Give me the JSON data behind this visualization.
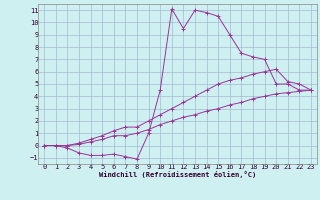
{
  "title": "",
  "xlabel": "Windchill (Refroidissement éolien,°C)",
  "bg_color": "#cff0f0",
  "grid_color": "#99aacc",
  "line_color": "#993399",
  "xlim": [
    -0.5,
    23.5
  ],
  "ylim": [
    -1.5,
    11.5
  ],
  "xticks": [
    0,
    1,
    2,
    3,
    4,
    5,
    6,
    7,
    8,
    9,
    10,
    11,
    12,
    13,
    14,
    15,
    16,
    17,
    18,
    19,
    20,
    21,
    22,
    23
  ],
  "yticks": [
    -1,
    0,
    1,
    2,
    3,
    4,
    5,
    6,
    7,
    8,
    9,
    10,
    11
  ],
  "line1_x": [
    0,
    1,
    2,
    3,
    4,
    5,
    6,
    7,
    8,
    9,
    10,
    11,
    12,
    13,
    14,
    15,
    16,
    17,
    18,
    19,
    20,
    21,
    22,
    23
  ],
  "line1_y": [
    0.0,
    0.0,
    -0.2,
    -0.6,
    -0.8,
    -0.8,
    -0.7,
    -0.9,
    -1.1,
    1.0,
    4.5,
    11.1,
    9.5,
    11.0,
    10.8,
    10.5,
    9.0,
    7.5,
    7.2,
    7.0,
    5.0,
    5.0,
    4.5,
    4.5
  ],
  "line2_x": [
    0,
    1,
    2,
    3,
    4,
    5,
    6,
    7,
    8,
    9,
    10,
    11,
    12,
    13,
    14,
    15,
    16,
    17,
    18,
    19,
    20,
    21,
    22,
    23
  ],
  "line2_y": [
    0.0,
    0.0,
    0.0,
    0.2,
    0.5,
    0.8,
    1.2,
    1.5,
    1.5,
    2.0,
    2.5,
    3.0,
    3.5,
    4.0,
    4.5,
    5.0,
    5.3,
    5.5,
    5.8,
    6.0,
    6.2,
    5.2,
    5.0,
    4.5
  ],
  "line3_x": [
    0,
    1,
    2,
    3,
    4,
    5,
    6,
    7,
    8,
    9,
    10,
    11,
    12,
    13,
    14,
    15,
    16,
    17,
    18,
    19,
    20,
    21,
    22,
    23
  ],
  "line3_y": [
    0.0,
    0.0,
    0.0,
    0.1,
    0.3,
    0.5,
    0.8,
    0.8,
    1.0,
    1.3,
    1.7,
    2.0,
    2.3,
    2.5,
    2.8,
    3.0,
    3.3,
    3.5,
    3.8,
    4.0,
    4.2,
    4.3,
    4.4,
    4.5
  ],
  "fontsize_label": 5.0,
  "fontsize_tick": 5.0
}
